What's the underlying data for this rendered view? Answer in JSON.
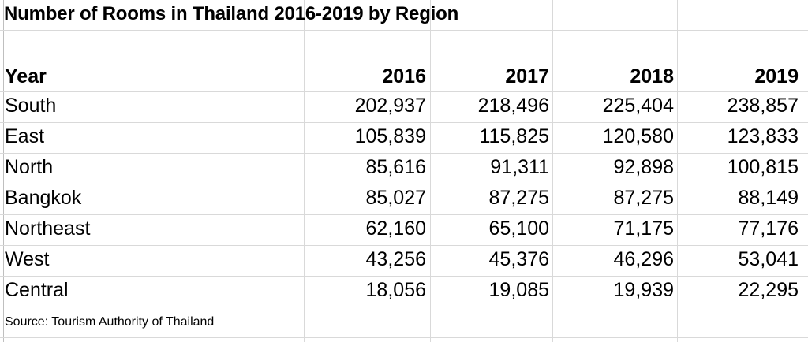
{
  "sheet": {
    "title": "Number of Rooms in Thailand 2016-2019 by Region",
    "header": {
      "label": "Year",
      "years": [
        "2016",
        "2017",
        "2018",
        "2019"
      ]
    },
    "rows": [
      {
        "region": "South",
        "values": [
          "202,937",
          "218,496",
          "225,404",
          "238,857"
        ]
      },
      {
        "region": "East",
        "values": [
          "105,839",
          "115,825",
          "120,580",
          "123,833"
        ]
      },
      {
        "region": "North",
        "values": [
          "85,616",
          "91,311",
          "92,898",
          "100,815"
        ]
      },
      {
        "region": "Bangkok",
        "values": [
          "85,027",
          "87,275",
          "87,275",
          "88,149"
        ]
      },
      {
        "region": "Northeast",
        "values": [
          "62,160",
          "65,100",
          "71,175",
          "77,176"
        ]
      },
      {
        "region": "West",
        "values": [
          "43,256",
          "45,376",
          "46,296",
          "53,041"
        ]
      },
      {
        "region": "Central",
        "values": [
          "18,056",
          "19,085",
          "19,939",
          "22,295"
        ]
      }
    ],
    "source": "Source: Tourism Authority of Thailand"
  }
}
